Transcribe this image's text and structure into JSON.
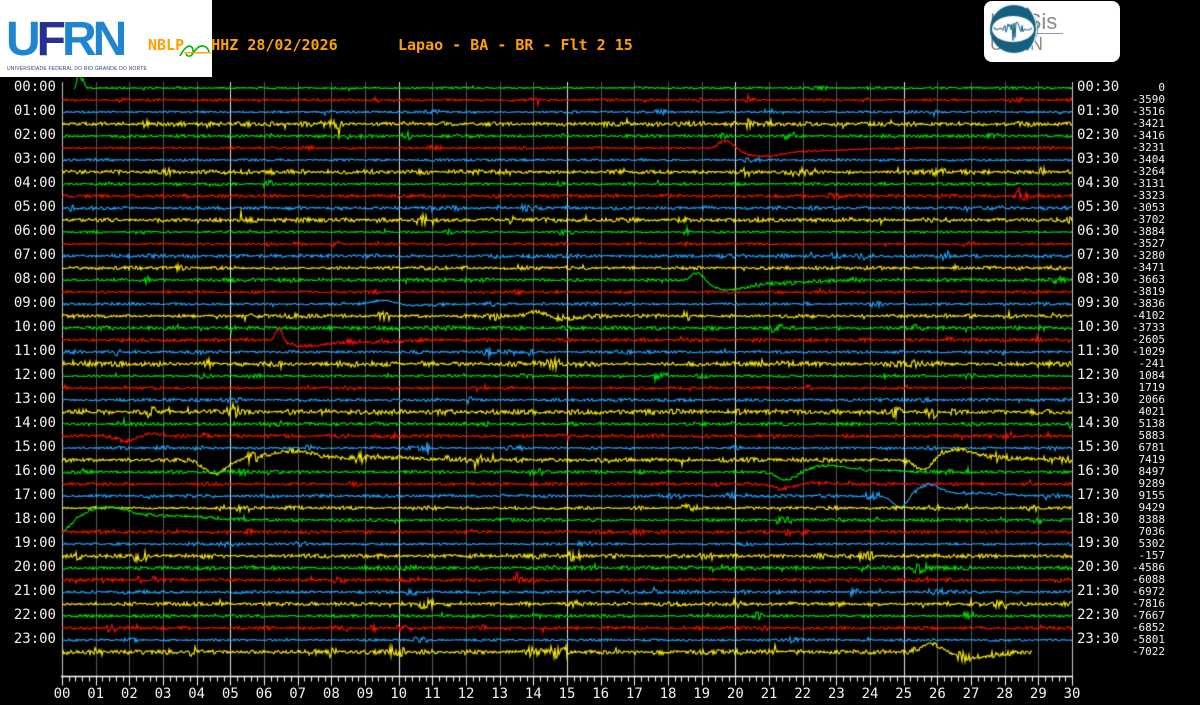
{
  "header": {
    "station_title": "NBLP___HHZ 28/02/2026",
    "location_title": "Lapao - BA - BR - Flt 2 15",
    "ufrn_logo": {
      "letters": [
        "U",
        "F",
        "R",
        "N"
      ],
      "caption": "UNIVERSIDADE FEDERAL DO RIO GRANDE DO NORTE"
    },
    "labsis_logo": {
      "title": "LabSis",
      "subtitle": "UFRN"
    }
  },
  "axes": {
    "left_labels": [
      "00:00",
      "01:00",
      "02:00",
      "03:00",
      "04:00",
      "05:00",
      "06:00",
      "07:00",
      "08:00",
      "09:00",
      "10:00",
      "11:00",
      "12:00",
      "13:00",
      "14:00",
      "15:00",
      "16:00",
      "17:00",
      "18:00",
      "19:00",
      "20:00",
      "21:00",
      "22:00",
      "23:00"
    ],
    "right_labels": [
      "00:30",
      "01:30",
      "02:30",
      "03:30",
      "04:30",
      "05:30",
      "06:30",
      "07:30",
      "08:30",
      "09:30",
      "10:30",
      "11:30",
      "12:30",
      "13:30",
      "14:30",
      "15:30",
      "16:30",
      "17:30",
      "18:30",
      "19:30",
      "20:30",
      "21:30",
      "22:30",
      "23:30"
    ],
    "bottom_ticks": [
      "00",
      "01",
      "02",
      "03",
      "04",
      "05",
      "06",
      "07",
      "08",
      "09",
      "10",
      "11",
      "12",
      "13",
      "14",
      "15",
      "16",
      "17",
      "18",
      "19",
      "20",
      "21",
      "22",
      "23",
      "24",
      "25",
      "26",
      "27",
      "28",
      "29",
      "30"
    ]
  },
  "chart_data": {
    "type": "line",
    "subtype": "helicorder-seismogram",
    "title": "NBLP___HHZ 28/02/2026",
    "subtitle": "Lapao - BA - BR - Flt 2 15",
    "minutes_per_line": 30,
    "lines_total": 48,
    "x_range_minutes": [
      0,
      30
    ],
    "x_minor_per_major": 5,
    "line_colors_cycle": [
      "green",
      "red",
      "blue",
      "yellow"
    ],
    "line_start_times": [
      "00:00",
      "00:30",
      "01:00",
      "01:30",
      "02:00",
      "02:30",
      "03:00",
      "03:30",
      "04:00",
      "04:30",
      "05:00",
      "05:30",
      "06:00",
      "06:30",
      "07:00",
      "07:30",
      "08:00",
      "08:30",
      "09:00",
      "09:30",
      "10:00",
      "10:30",
      "11:00",
      "11:30",
      "12:00",
      "12:30",
      "13:00",
      "13:30",
      "14:00",
      "14:30",
      "15:00",
      "15:30",
      "16:00",
      "16:30",
      "17:00",
      "17:30",
      "18:00",
      "18:30",
      "19:00",
      "19:30",
      "20:00",
      "20:30",
      "21:00",
      "21:30",
      "22:00",
      "22:30",
      "23:00",
      "23:30"
    ],
    "line_end_values": [
      0,
      -3590,
      -3516,
      -3421,
      -3416,
      -3231,
      -3404,
      -3264,
      -3131,
      -3323,
      -3053,
      -3702,
      -3884,
      -3527,
      -3280,
      -3471,
      -3663,
      -3819,
      -3836,
      -4102,
      -3733,
      -2605,
      -1029,
      -241,
      1084,
      1719,
      2066,
      4021,
      5138,
      5883,
      6781,
      7419,
      8497,
      9289,
      9155,
      9429,
      8388,
      7036,
      5302,
      -157,
      -4586,
      -6088,
      -6972,
      -7816,
      -7667,
      -6852,
      -5801,
      -7022
    ],
    "events": [
      {
        "line": 0,
        "t0": 0.35,
        "g": [
          [
            0.5,
            15,
            0.07
          ],
          [
            0.63,
            8,
            0.05
          ]
        ]
      },
      {
        "line": 5,
        "g": [
          [
            19.75,
            9,
            0.3
          ],
          [
            20.8,
            -8,
            0.85
          ],
          [
            22.5,
            -2.5,
            1.4
          ]
        ]
      },
      {
        "line": 16,
        "g": [
          [
            18.9,
            10,
            0.28
          ],
          [
            19.75,
            -9,
            0.8
          ],
          [
            21.3,
            -3,
            1.3
          ]
        ]
      },
      {
        "line": 18,
        "g": [
          [
            9.55,
            4,
            0.45
          ],
          [
            10.5,
            -1.5,
            0.7
          ]
        ]
      },
      {
        "line": 19,
        "g": [
          [
            14.1,
            4.5,
            0.35
          ],
          [
            14.95,
            -2.5,
            0.6
          ]
        ]
      },
      {
        "line": 21,
        "g": [
          [
            6.45,
            13,
            0.15
          ],
          [
            7.2,
            -6,
            0.7
          ],
          [
            8.8,
            -2.5,
            1.3
          ]
        ]
      },
      {
        "line": 29,
        "g": [
          [
            1.9,
            -5,
            0.35
          ],
          [
            2.7,
            2.5,
            0.45
          ]
        ]
      },
      {
        "line": 31,
        "g": [
          [
            4.55,
            -14,
            0.45
          ],
          [
            6.8,
            9,
            1.0
          ],
          [
            9.5,
            2.5,
            1.5
          ],
          [
            25.6,
            -11,
            0.35
          ],
          [
            26.55,
            10,
            0.7
          ],
          [
            27.9,
            2.5,
            1.0
          ]
        ]
      },
      {
        "line": 32,
        "g": [
          [
            21.55,
            -9,
            0.4
          ],
          [
            22.7,
            6,
            0.9
          ],
          [
            24.2,
            1.5,
            1.2
          ]
        ]
      },
      {
        "line": 33,
        "g": [
          [
            21.45,
            -4,
            0.45
          ],
          [
            22.4,
            1.5,
            0.5
          ]
        ]
      },
      {
        "line": 34,
        "g": [
          [
            24.9,
            -12,
            0.3
          ],
          [
            25.75,
            11,
            0.5
          ],
          [
            27.2,
            3,
            1.0
          ]
        ]
      },
      {
        "line": 36,
        "g": [
          [
            0.0,
            -12,
            0.4
          ],
          [
            1.3,
            12,
            0.9
          ],
          [
            3.2,
            4,
            1.6
          ]
        ]
      },
      {
        "line": 47,
        "t1": 28.8,
        "g": [
          [
            25.85,
            9,
            0.45
          ],
          [
            27.1,
            -5,
            0.9
          ]
        ]
      }
    ]
  },
  "style": {
    "background": "#000000",
    "title_color": "#ffa000",
    "label_color": "#f2f2f2",
    "trace_colors": {
      "green": "#00e400",
      "red": "#ff1000",
      "blue": "#1fa6ff",
      "yellow": "#fff000"
    },
    "grid_minor": "#585858",
    "grid_major": "#e6e6e6",
    "frame": "#c8c8c8",
    "axis": "#ffffff",
    "labsis_teal": "#155f82"
  }
}
